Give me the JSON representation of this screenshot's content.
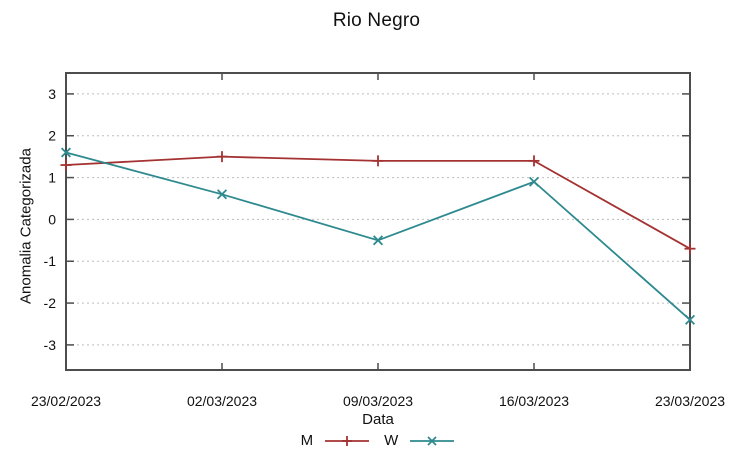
{
  "chart_data": {
    "type": "line",
    "title": "Rio Negro",
    "xlabel": "Data",
    "ylabel": "Anomalia Categorizada",
    "categories": [
      "23/02/2023",
      "02/03/2023",
      "09/03/2023",
      "16/03/2023",
      "23/03/2023"
    ],
    "series": [
      {
        "name": "M",
        "color": "#a43232",
        "marker": "plus",
        "values": [
          1.3,
          1.5,
          1.4,
          1.4,
          -0.7
        ]
      },
      {
        "name": "W",
        "color": "#2e8a8e",
        "marker": "cross",
        "values": [
          1.6,
          0.6,
          -0.5,
          0.9,
          -2.4
        ]
      }
    ],
    "yticks": [
      3,
      2,
      1,
      0,
      -1,
      -2,
      -3
    ],
    "ylim": [
      -3.6,
      3.5
    ],
    "grid": "horizontal-dotted",
    "legend_position": "bottom-center",
    "axis_color": "#4d4d4d",
    "grid_color": "#bdbdbd",
    "text_color": "#111111"
  }
}
